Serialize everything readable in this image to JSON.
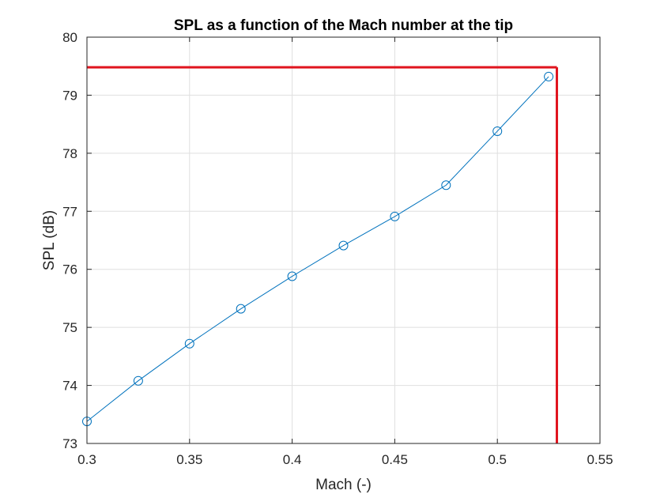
{
  "chart_data": {
    "type": "line",
    "title": "SPL as a function of the Mach number at the tip",
    "xlabel": "Mach (-)",
    "ylabel": "SPL (dB)",
    "xlim": [
      0.3,
      0.55
    ],
    "ylim": [
      73,
      80
    ],
    "xticks": [
      0.3,
      0.35,
      0.4,
      0.45,
      0.5,
      0.55
    ],
    "xtick_labels": [
      "0.3",
      "0.35",
      "0.4",
      "0.45",
      "0.5",
      "0.55"
    ],
    "yticks": [
      73,
      74,
      75,
      76,
      77,
      78,
      79,
      80
    ],
    "ytick_labels": [
      "73",
      "74",
      "75",
      "76",
      "77",
      "78",
      "79",
      "80"
    ],
    "grid": true,
    "series": [
      {
        "color": "#0072BD",
        "marker": "circle",
        "x": [
          0.3,
          0.325,
          0.35,
          0.375,
          0.4,
          0.425,
          0.45,
          0.475,
          0.5,
          0.525
        ],
        "y": [
          73.38,
          74.08,
          74.72,
          75.32,
          75.88,
          76.41,
          76.91,
          77.45,
          78.38,
          79.32
        ]
      }
    ],
    "reference_lines": {
      "color": "#E0141E",
      "horizontal_y": 79.48,
      "vertical_x": 0.529
    }
  }
}
